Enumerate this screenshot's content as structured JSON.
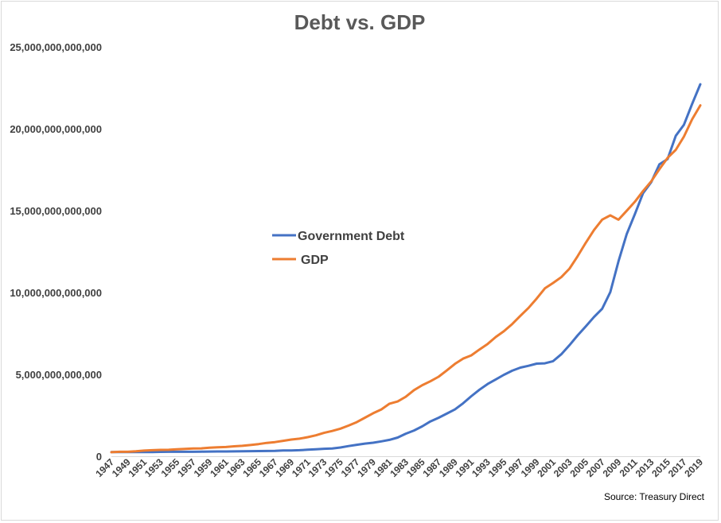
{
  "chart_data": {
    "type": "line",
    "title": "Debt vs. GDP",
    "source": "Source: Treasury Direct",
    "xlabel": "",
    "ylabel": "",
    "ylim": [
      0,
      25000000000000
    ],
    "yticks": [
      "0",
      "5,000,000,000,000",
      "10,000,000,000,000",
      "15,000,000,000,000",
      "20,000,000,000,000",
      "25,000,000,000,000"
    ],
    "ytick_values": [
      0,
      5000000000000,
      10000000000000,
      15000000000000,
      20000000000000,
      25000000000000
    ],
    "xticks": [
      "1947",
      "1949",
      "1951",
      "1953",
      "1955",
      "1957",
      "1959",
      "1961",
      "1963",
      "1965",
      "1967",
      "1969",
      "1971",
      "1973",
      "1975",
      "1977",
      "1979",
      "1981",
      "1983",
      "1985",
      "1987",
      "1989",
      "1991",
      "1993",
      "1995",
      "1997",
      "1999",
      "2001",
      "2003",
      "2005",
      "2007",
      "2009",
      "2011",
      "2013",
      "2015",
      "2017",
      "2019"
    ],
    "grid": false,
    "legend_position": "center-left",
    "x": [
      1947,
      1948,
      1949,
      1950,
      1951,
      1952,
      1953,
      1954,
      1955,
      1956,
      1957,
      1958,
      1959,
      1960,
      1961,
      1962,
      1963,
      1964,
      1965,
      1966,
      1967,
      1968,
      1969,
      1970,
      1971,
      1972,
      1973,
      1974,
      1975,
      1976,
      1977,
      1978,
      1979,
      1980,
      1981,
      1982,
      1983,
      1984,
      1985,
      1986,
      1987,
      1988,
      1989,
      1990,
      1991,
      1992,
      1993,
      1994,
      1995,
      1996,
      1997,
      1998,
      1999,
      2000,
      2001,
      2002,
      2003,
      2004,
      2005,
      2006,
      2007,
      2008,
      2009,
      2010,
      2011,
      2012,
      2013,
      2014,
      2015,
      2016,
      2017,
      2018,
      2019
    ],
    "series": [
      {
        "name": "Government Debt",
        "color": "#4472c4",
        "values": [
          258000000000,
          252000000000,
          252000000000,
          257000000000,
          255000000000,
          259000000000,
          266000000000,
          271000000000,
          274000000000,
          273000000000,
          272000000000,
          280000000000,
          287000000000,
          291000000000,
          289000000000,
          298000000000,
          306000000000,
          312000000000,
          317000000000,
          320000000000,
          326000000000,
          348000000000,
          354000000000,
          371000000000,
          398000000000,
          427000000000,
          458000000000,
          475000000000,
          533000000000,
          620000000000,
          699000000000,
          772000000000,
          827000000000,
          908000000000,
          998000000000,
          1142000000000,
          1377000000000,
          1572000000000,
          1823000000000,
          2125000000000,
          2350000000000,
          2602000000000,
          2857000000000,
          3233000000000,
          3665000000000,
          4065000000000,
          4411000000000,
          4693000000000,
          4974000000000,
          5225000000000,
          5413000000000,
          5526000000000,
          5656000000000,
          5674000000000,
          5807000000000,
          6228000000000,
          6783000000000,
          7379000000000,
          7933000000000,
          8507000000000,
          9008000000000,
          10025000000000,
          11910000000000,
          13562000000000,
          14790000000000,
          16066000000000,
          16738000000000,
          17824000000000,
          18151000000000,
          19573000000000,
          20245000000000,
          21516000000000,
          22719000000000
        ]
      },
      {
        "name": "GDP",
        "color": "#ed7d31",
        "values": [
          250000000000,
          272000000000,
          273000000000,
          300000000000,
          346000000000,
          367000000000,
          389000000000,
          391000000000,
          425000000000,
          449000000000,
          474000000000,
          482000000000,
          522000000000,
          543000000000,
          563000000000,
          605000000000,
          638000000000,
          686000000000,
          744000000000,
          815000000000,
          862000000000,
          943000000000,
          1019000000000,
          1073000000000,
          1165000000000,
          1279000000000,
          1425000000000,
          1545000000000,
          1685000000000,
          1873000000000,
          2082000000000,
          2352000000000,
          2627000000000,
          2857000000000,
          3207000000000,
          3343000000000,
          3634000000000,
          4037000000000,
          4339000000000,
          4580000000000,
          4855000000000,
          5236000000000,
          5642000000000,
          5963000000000,
          6158000000000,
          6520000000000,
          6858000000000,
          7287000000000,
          7639000000000,
          8073000000000,
          8578000000000,
          9063000000000,
          9631000000000,
          10252000000000,
          10582000000000,
          10936000000000,
          11458000000000,
          12214000000000,
          13037000000000,
          13815000000000,
          14452000000000,
          14713000000000,
          14449000000000,
          14992000000000,
          15543000000000,
          16197000000000,
          16785000000000,
          17527000000000,
          18225000000000,
          18715000000000,
          19519000000000,
          20580000000000,
          21428000000000
        ]
      }
    ]
  }
}
